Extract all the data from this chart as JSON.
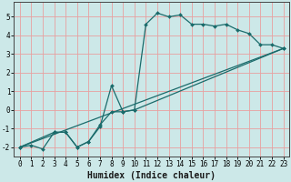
{
  "xlabel": "Humidex (Indice chaleur)",
  "ylabel": "",
  "xlim": [
    -0.5,
    23.5
  ],
  "ylim": [
    -2.5,
    5.8
  ],
  "yticks": [
    -2,
    -1,
    0,
    1,
    2,
    3,
    4,
    5
  ],
  "xtick_values": [
    0,
    1,
    2,
    3,
    4,
    5,
    6,
    7,
    8,
    9,
    10,
    11,
    12,
    13,
    14,
    15,
    16,
    17,
    18,
    19,
    20,
    21,
    22,
    23
  ],
  "bg_color": "#cce8e8",
  "line_color": "#1a6b6b",
  "grid_color_v": "#e8a0a0",
  "grid_color_h": "#e8a0a0",
  "line1_x": [
    0,
    1,
    2,
    3,
    4,
    5,
    6,
    7,
    8,
    9,
    10,
    11,
    12,
    13,
    14,
    15,
    16,
    17,
    18,
    19,
    20,
    21,
    22,
    23
  ],
  "line1_y": [
    -2.0,
    -1.9,
    -2.1,
    -1.2,
    -1.2,
    -2.0,
    -1.7,
    -0.9,
    1.3,
    -0.1,
    0.0,
    4.6,
    5.2,
    5.0,
    5.1,
    4.6,
    4.6,
    4.5,
    4.6,
    4.3,
    4.1,
    3.5,
    3.5,
    3.3
  ],
  "line2_x": [
    0,
    3,
    4,
    5,
    6,
    7,
    8,
    9,
    10,
    23
  ],
  "line2_y": [
    -2.0,
    -1.2,
    -1.2,
    -2.0,
    -1.7,
    -0.8,
    -0.1,
    -0.1,
    0.0,
    3.3
  ],
  "line3_x": [
    0,
    23
  ],
  "line3_y": [
    -2.0,
    3.3
  ],
  "marker_size": 2.0,
  "line_width": 0.9,
  "xlabel_fontsize": 7,
  "tick_fontsize": 5.5
}
